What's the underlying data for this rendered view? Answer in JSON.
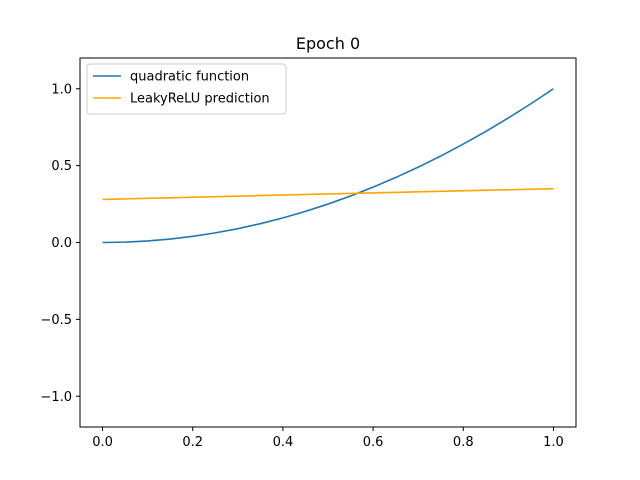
{
  "chart_data": {
    "type": "line",
    "title": "Epoch 0",
    "xlabel": "",
    "ylabel": "",
    "xlim": [
      -0.05,
      1.05
    ],
    "ylim": [
      -1.2,
      1.2
    ],
    "xticks": [
      0.0,
      0.2,
      0.4,
      0.6,
      0.8,
      1.0
    ],
    "xtick_labels": [
      "0.0",
      "0.2",
      "0.4",
      "0.6",
      "0.8",
      "1.0"
    ],
    "yticks": [
      -1.0,
      -0.5,
      0.0,
      0.5,
      1.0
    ],
    "ytick_labels": [
      "−1.0",
      "−0.5",
      "0.0",
      "0.5",
      "1.0"
    ],
    "grid": false,
    "legend_position": "top-left",
    "series": [
      {
        "name": "quadratic function",
        "color": "#1f77b4",
        "x": [
          0.0,
          0.05,
          0.1,
          0.15,
          0.2,
          0.25,
          0.3,
          0.35,
          0.4,
          0.45,
          0.5,
          0.55,
          0.6,
          0.65,
          0.7,
          0.75,
          0.8,
          0.85,
          0.9,
          0.95,
          1.0
        ],
        "y": [
          0.0,
          0.0025,
          0.01,
          0.0225,
          0.04,
          0.0625,
          0.09,
          0.1225,
          0.16,
          0.2025,
          0.25,
          0.3025,
          0.36,
          0.4225,
          0.49,
          0.5625,
          0.64,
          0.7225,
          0.81,
          0.9025,
          1.0
        ]
      },
      {
        "name": "LeakyReLU prediction",
        "color": "#ffa500",
        "x": [
          0.0,
          0.25,
          0.5,
          0.75,
          1.0
        ],
        "y": [
          0.28,
          0.298,
          0.316,
          0.333,
          0.35
        ]
      }
    ]
  }
}
